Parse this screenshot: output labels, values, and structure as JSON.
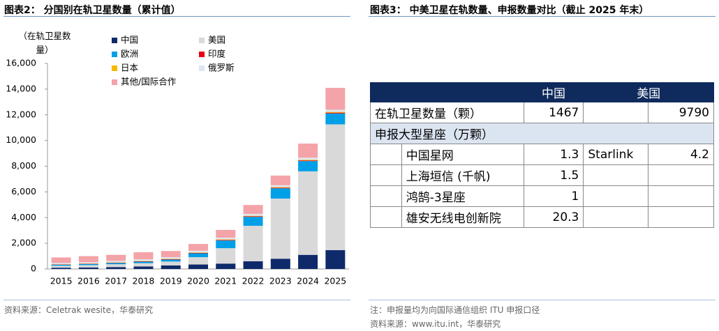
{
  "chart_data": {
    "type": "bar",
    "stacked": true,
    "title": "图表2：  分国别在轨卫星数量（累计值）",
    "y_label": "（在轨卫星数量）",
    "categories": [
      "2015",
      "2016",
      "2017",
      "2018",
      "2019",
      "2020",
      "2021",
      "2022",
      "2023",
      "2024",
      "2025"
    ],
    "series": [
      {
        "name": "中国",
        "color": "#0f2a6b",
        "values": [
          100,
          120,
          150,
          200,
          280,
          350,
          420,
          600,
          800,
          1100,
          1467
        ]
      },
      {
        "name": "美国",
        "color": "#d9d9d9",
        "values": [
          150,
          180,
          220,
          250,
          300,
          570,
          1200,
          2760,
          4680,
          6500,
          9790
        ]
      },
      {
        "name": "欧洲",
        "color": "#00a0e9",
        "values": [
          80,
          90,
          100,
          120,
          150,
          300,
          600,
          700,
          800,
          800,
          850
        ]
      },
      {
        "name": "印度",
        "color": "#e60012",
        "values": [
          20,
          20,
          25,
          30,
          30,
          35,
          40,
          40,
          45,
          50,
          60
        ]
      },
      {
        "name": "日本",
        "color": "#f5b800",
        "values": [
          20,
          20,
          25,
          30,
          30,
          35,
          40,
          40,
          45,
          50,
          60
        ]
      },
      {
        "name": "俄罗斯",
        "color": "#dde6f2",
        "values": [
          100,
          100,
          110,
          120,
          130,
          130,
          140,
          150,
          150,
          160,
          170
        ]
      },
      {
        "name": "其他/国际合作",
        "color": "#f4a3a8",
        "values": [
          430,
          470,
          470,
          550,
          480,
          530,
          600,
          690,
          750,
          1100,
          1700
        ]
      }
    ],
    "ylim": [
      0,
      16000
    ],
    "yticks": [
      0,
      {
        "value": 2000,
        "label": "2,000"
      },
      {
        "value": 4000,
        "label": "4,000"
      },
      {
        "value": 6000,
        "label": "6,000"
      },
      {
        "value": 8000,
        "label": "8,000"
      },
      {
        "value": 10000,
        "label": "10,000"
      },
      {
        "value": 12000,
        "label": "12,000"
      },
      {
        "value": 14000,
        "label": "14,000"
      },
      {
        "value": 16000,
        "label": "16,000"
      }
    ],
    "grid": false,
    "source": "资料来源：Celetrak wesite，华泰研究"
  },
  "table": {
    "title": "图表3：  中美卫星在轨数量、申报数量对比（截止 2025 年末）",
    "header": [
      "中国",
      "美国"
    ],
    "orbit_row": [
      "在轨卫星数量（颗）",
      1467,
      9790
    ],
    "section": "申报大型星座（万颗）",
    "constellations": [
      [
        "中国星网",
        1.3,
        "Starlink",
        4.2
      ],
      [
        "上海垣信 (千帆)",
        1.5
      ],
      [
        "鸿鹄-3星座",
        1
      ],
      [
        "雄安无线电创新院",
        20.3
      ]
    ],
    "note": "注：申报量均为向国际通信组织 ITU 申报口径",
    "source": "资料来源：www.itu.int，华泰研究"
  }
}
